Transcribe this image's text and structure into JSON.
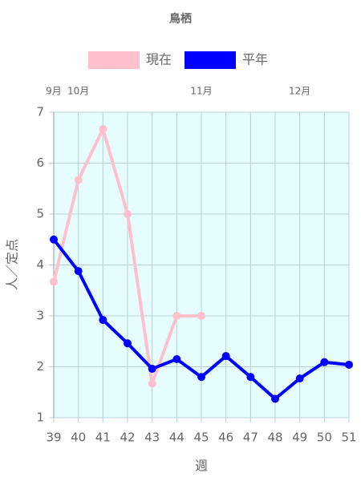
{
  "chart_data": {
    "type": "line",
    "title": "鳥栖",
    "x_label": "週",
    "y_label": "人／定点",
    "categories": [
      "39",
      "40",
      "41",
      "42",
      "43",
      "44",
      "45",
      "46",
      "47",
      "48",
      "49",
      "50",
      "51"
    ],
    "top_labels": [
      "9月",
      "10月",
      null,
      null,
      null,
      null,
      "11月",
      null,
      null,
      null,
      "12月",
      null,
      null
    ],
    "series": [
      {
        "name": "現在",
        "color": "#ffc0cb",
        "values": [
          3.67,
          5.67,
          6.67,
          5.0,
          1.67,
          3.0,
          3.0,
          null,
          null,
          null,
          null,
          null,
          null
        ]
      },
      {
        "name": "平年",
        "color": "#0000ff",
        "values": [
          4.5,
          3.88,
          2.92,
          2.46,
          1.96,
          2.15,
          1.8,
          2.21,
          1.8,
          1.37,
          1.77,
          2.09,
          2.04
        ]
      }
    ],
    "ylim": [
      1,
      7
    ],
    "yticks": [
      1,
      2,
      3,
      4,
      5,
      6,
      7
    ],
    "grid": true,
    "background": "#e6fdff"
  }
}
